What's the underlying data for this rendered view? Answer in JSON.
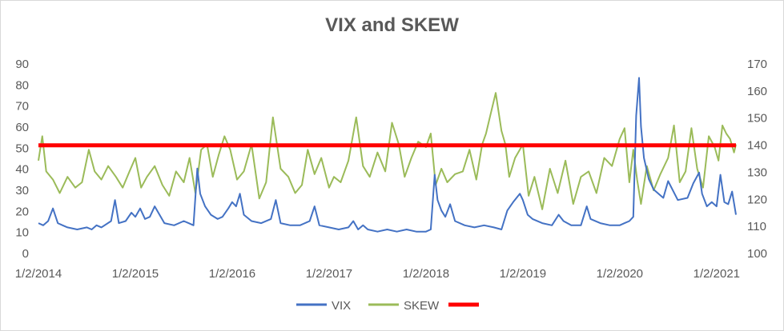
{
  "chart_data": {
    "type": "line",
    "title": "VIX and SKEW",
    "xlabel": "",
    "ylabel": "",
    "x_tick_labels": [
      "1/2/2014",
      "1/2/2015",
      "1/2/2016",
      "1/2/2017",
      "1/2/2018",
      "1/2/2019",
      "1/2/2020",
      "1/2/2021"
    ],
    "x_range_years": [
      2014.0,
      2021.2
    ],
    "y_left": {
      "min": 0,
      "max": 90,
      "ticks": [
        0,
        10,
        20,
        30,
        40,
        50,
        60,
        70,
        80,
        90
      ]
    },
    "y_right": {
      "min": 100,
      "max": 170,
      "ticks": [
        100,
        110,
        120,
        130,
        140,
        150,
        160,
        170
      ]
    },
    "grid": false,
    "legend_position": "bottom",
    "colors": {
      "vix": "#4472c4",
      "skew": "#9bbb59",
      "threshold": "#ff0000"
    },
    "series": [
      {
        "name": "VIX",
        "axis": "left",
        "x": [
          2014.0,
          2014.05,
          2014.1,
          2014.15,
          2014.2,
          2014.25,
          2014.3,
          2014.4,
          2014.5,
          2014.55,
          2014.6,
          2014.65,
          2014.75,
          2014.79,
          2014.83,
          2014.9,
          2014.96,
          2015.0,
          2015.05,
          2015.1,
          2015.15,
          2015.2,
          2015.3,
          2015.4,
          2015.5,
          2015.55,
          2015.6,
          2015.64,
          2015.67,
          2015.72,
          2015.78,
          2015.85,
          2015.9,
          2015.96,
          2016.0,
          2016.04,
          2016.08,
          2016.12,
          2016.2,
          2016.3,
          2016.4,
          2016.45,
          2016.5,
          2016.6,
          2016.7,
          2016.8,
          2016.85,
          2016.9,
          2017.0,
          2017.1,
          2017.2,
          2017.25,
          2017.3,
          2017.35,
          2017.4,
          2017.5,
          2017.6,
          2017.7,
          2017.8,
          2017.9,
          2018.0,
          2018.05,
          2018.09,
          2018.12,
          2018.16,
          2018.2,
          2018.25,
          2018.3,
          2018.4,
          2018.5,
          2018.6,
          2018.7,
          2018.78,
          2018.84,
          2018.9,
          2018.97,
          2019.0,
          2019.05,
          2019.1,
          2019.2,
          2019.3,
          2019.37,
          2019.42,
          2019.5,
          2019.6,
          2019.66,
          2019.7,
          2019.8,
          2019.9,
          2020.0,
          2020.05,
          2020.1,
          2020.14,
          2020.17,
          2020.2,
          2020.22,
          2020.25,
          2020.3,
          2020.35,
          2020.4,
          2020.45,
          2020.5,
          2020.6,
          2020.7,
          2020.76,
          2020.82,
          2020.85,
          2020.9,
          2020.95,
          2021.0,
          2021.04,
          2021.08,
          2021.12,
          2021.16,
          2021.2
        ],
        "values": [
          14,
          13,
          15,
          21,
          14,
          13,
          12,
          11,
          12,
          11,
          13,
          12,
          15,
          25,
          14,
          15,
          19,
          17,
          21,
          16,
          17,
          22,
          14,
          13,
          15,
          14,
          13,
          40,
          28,
          22,
          18,
          16,
          17,
          21,
          24,
          22,
          28,
          18,
          15,
          14,
          16,
          25,
          14,
          13,
          13,
          15,
          22,
          13,
          12,
          11,
          12,
          15,
          11,
          13,
          11,
          10,
          11,
          10,
          11,
          10,
          10,
          11,
          37,
          25,
          20,
          17,
          23,
          15,
          13,
          12,
          13,
          12,
          11,
          20,
          24,
          28,
          25,
          18,
          16,
          14,
          13,
          18,
          15,
          13,
          13,
          22,
          16,
          14,
          13,
          13,
          14,
          15,
          17,
          65,
          83,
          60,
          45,
          35,
          30,
          28,
          26,
          34,
          25,
          26,
          33,
          38,
          28,
          22,
          24,
          22,
          37,
          24,
          23,
          29,
          18
        ]
      },
      {
        "name": "SKEW",
        "axis": "right",
        "x": [
          2014.0,
          2014.04,
          2014.08,
          2014.15,
          2014.22,
          2014.3,
          2014.38,
          2014.45,
          2014.52,
          2014.58,
          2014.65,
          2014.72,
          2014.8,
          2014.87,
          2014.94,
          2015.0,
          2015.06,
          2015.12,
          2015.2,
          2015.28,
          2015.35,
          2015.42,
          2015.5,
          2015.56,
          2015.62,
          2015.68,
          2015.74,
          2015.8,
          2015.86,
          2015.92,
          2015.98,
          2016.05,
          2016.12,
          2016.2,
          2016.28,
          2016.35,
          2016.42,
          2016.5,
          2016.58,
          2016.65,
          2016.72,
          2016.78,
          2016.85,
          2016.92,
          2017.0,
          2017.05,
          2017.12,
          2017.2,
          2017.28,
          2017.35,
          2017.42,
          2017.5,
          2017.58,
          2017.65,
          2017.72,
          2017.78,
          2017.85,
          2017.92,
          2018.0,
          2018.05,
          2018.1,
          2018.16,
          2018.22,
          2018.3,
          2018.38,
          2018.45,
          2018.52,
          2018.58,
          2018.62,
          2018.66,
          2018.72,
          2018.78,
          2018.82,
          2018.86,
          2018.92,
          2019.0,
          2019.06,
          2019.12,
          2019.2,
          2019.28,
          2019.36,
          2019.44,
          2019.52,
          2019.6,
          2019.68,
          2019.76,
          2019.84,
          2019.92,
          2020.0,
          2020.05,
          2020.1,
          2020.14,
          2020.18,
          2020.22,
          2020.28,
          2020.35,
          2020.42,
          2020.5,
          2020.56,
          2020.62,
          2020.68,
          2020.74,
          2020.8,
          2020.86,
          2020.92,
          2020.98,
          2021.02,
          2021.06,
          2021.1,
          2021.14,
          2021.18,
          2021.2
        ],
        "values": [
          134,
          143,
          130,
          127,
          122,
          128,
          124,
          126,
          138,
          130,
          127,
          132,
          128,
          124,
          130,
          135,
          124,
          128,
          132,
          125,
          121,
          130,
          126,
          135,
          122,
          138,
          140,
          128,
          136,
          143,
          138,
          127,
          130,
          140,
          120,
          126,
          150,
          131,
          128,
          122,
          125,
          138,
          129,
          135,
          124,
          128,
          126,
          134,
          150,
          132,
          128,
          137,
          130,
          148,
          140,
          128,
          135,
          141,
          139,
          144,
          125,
          131,
          126,
          129,
          130,
          138,
          127,
          140,
          144,
          150,
          159,
          145,
          140,
          128,
          135,
          140,
          121,
          128,
          116,
          131,
          122,
          134,
          118,
          128,
          130,
          122,
          135,
          132,
          142,
          146,
          126,
          138,
          127,
          118,
          132,
          123,
          129,
          135,
          147,
          126,
          130,
          146,
          131,
          124,
          143,
          139,
          134,
          147,
          144,
          142,
          137,
          140
        ]
      },
      {
        "name": "",
        "axis": "left",
        "x": [
          2014.0,
          2021.2
        ],
        "values": [
          51,
          51
        ]
      }
    ],
    "legend": [
      "VIX",
      "SKEW",
      ""
    ]
  }
}
